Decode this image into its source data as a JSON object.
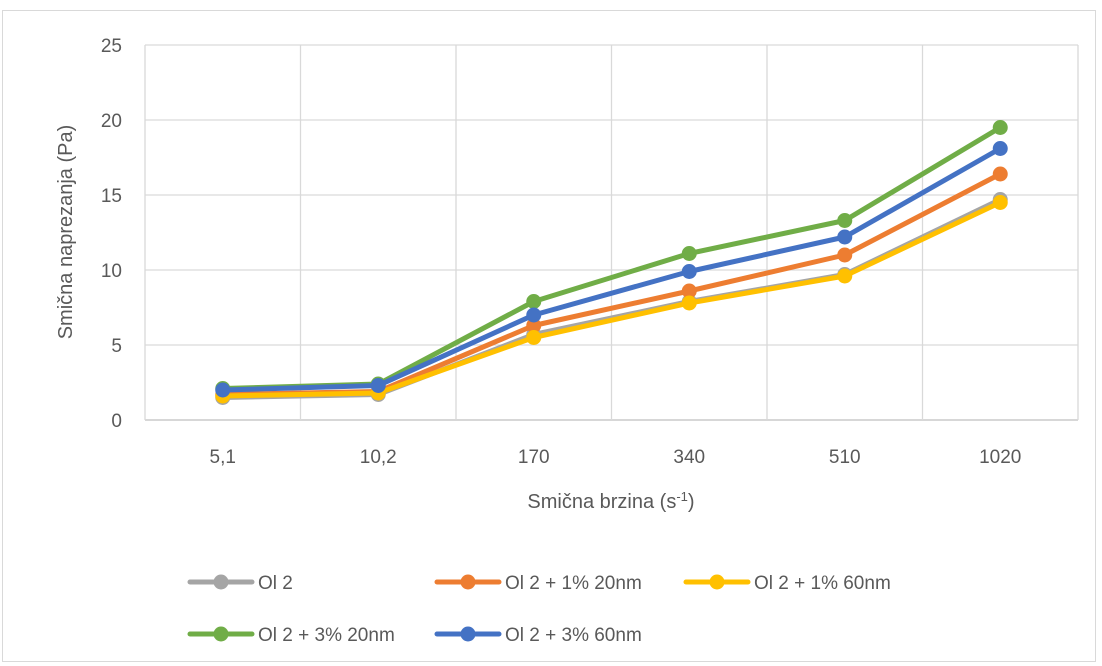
{
  "chart_data": {
    "type": "line",
    "title": "",
    "xlabel": "Smična brzina (s",
    "xlabel_sup": "-1",
    "xlabel_end": ")",
    "ylabel": "Smična naprezanja (Pa)",
    "categories": [
      "5,1",
      "10,2",
      "170",
      "340",
      "510",
      "1020"
    ],
    "ylim": [
      0,
      25
    ],
    "yticks": [
      0,
      5,
      10,
      15,
      20,
      25
    ],
    "grid": true,
    "legend_position": "bottom",
    "series": [
      {
        "name": "Ol 2",
        "color": "#a5a5a5",
        "values": [
          1.5,
          1.7,
          5.7,
          7.9,
          9.7,
          14.7
        ]
      },
      {
        "name": "Ol 2 + 1% 20nm",
        "color": "#ed7d31",
        "values": [
          1.7,
          1.9,
          6.3,
          8.6,
          11.0,
          16.4
        ]
      },
      {
        "name": "Ol 2 + 1% 60nm",
        "color": "#ffc000",
        "values": [
          1.6,
          1.8,
          5.5,
          7.8,
          9.6,
          14.5
        ]
      },
      {
        "name": "Ol 2 + 3% 20nm",
        "color": "#70ad47",
        "values": [
          2.1,
          2.4,
          7.9,
          11.1,
          13.3,
          19.5
        ]
      },
      {
        "name": "Ol 2 + 3% 60nm",
        "color": "#4472c4",
        "values": [
          2.0,
          2.3,
          7.0,
          9.9,
          12.2,
          18.1
        ]
      }
    ]
  }
}
